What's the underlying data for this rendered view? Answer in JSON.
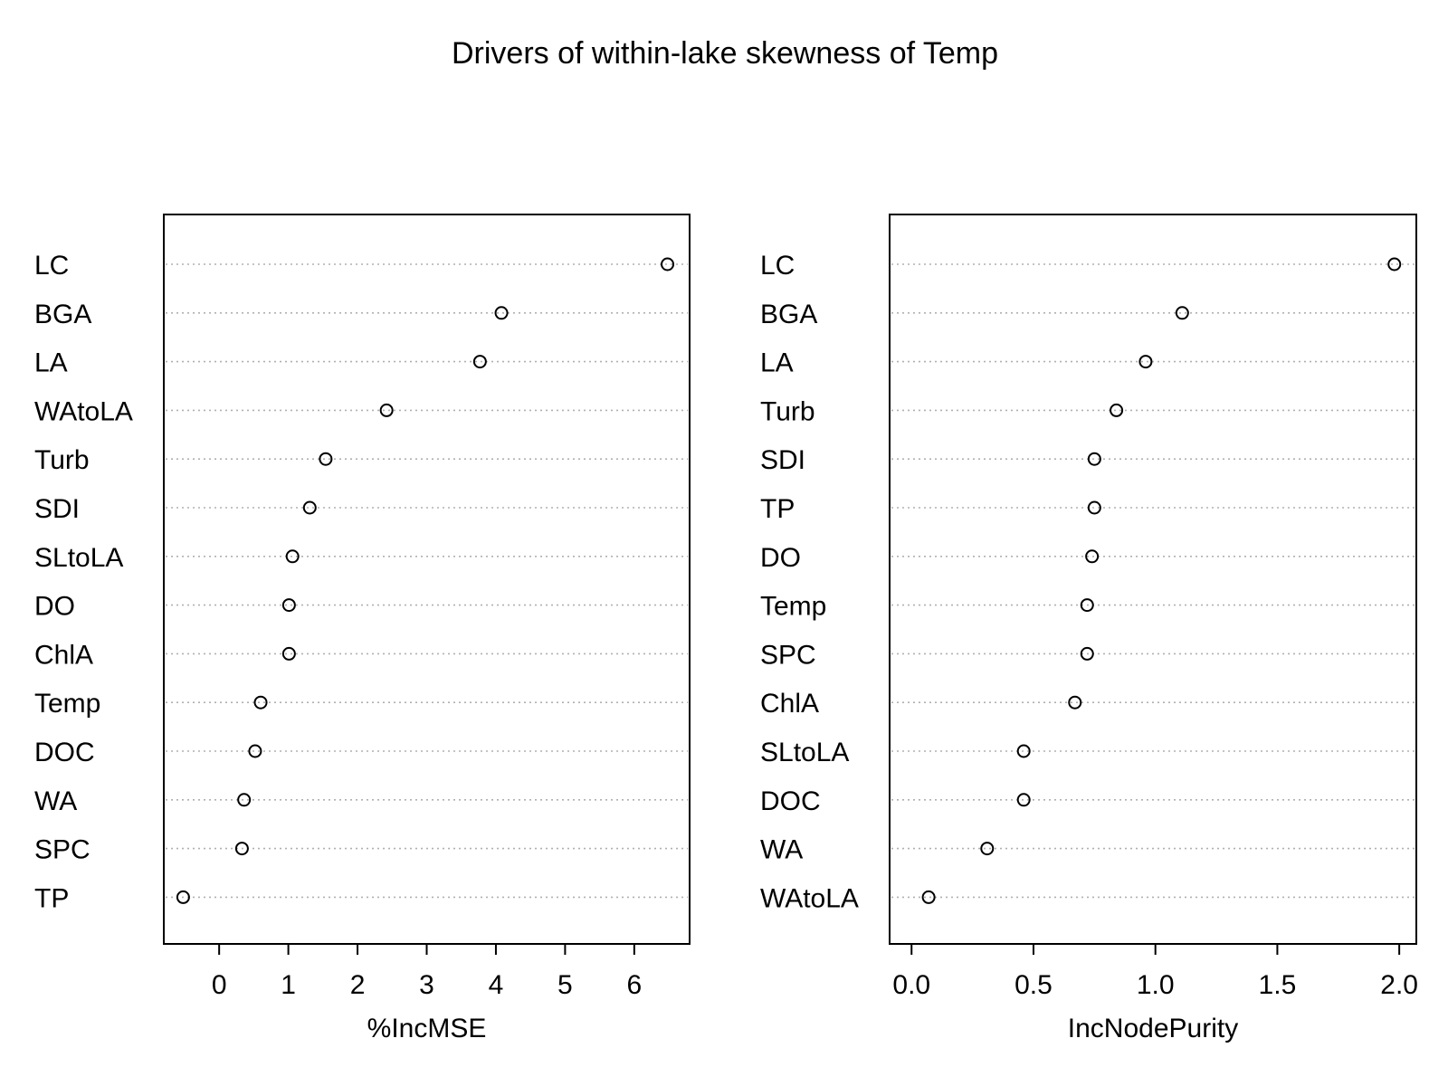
{
  "title": "Drivers of within-lake skewness of Temp",
  "chart_data": [
    {
      "type": "scatter",
      "subtype": "dotchart",
      "xlabel": "%IncMSE",
      "xlim": [
        -0.8,
        6.8
      ],
      "xticks": [
        0,
        1,
        2,
        3,
        4,
        5,
        6
      ],
      "xtick_labels": [
        "0",
        "1",
        "2",
        "3",
        "4",
        "5",
        "6"
      ],
      "grid": "dotted horizontal guides",
      "categories": [
        "LC",
        "BGA",
        "LA",
        "WAtoLA",
        "Turb",
        "SDI",
        "SLtoLA",
        "DO",
        "ChlA",
        "Temp",
        "DOC",
        "WA",
        "SPC",
        "TP"
      ],
      "values": [
        6.48,
        4.08,
        3.77,
        2.42,
        1.54,
        1.31,
        1.06,
        1.01,
        1.01,
        0.6,
        0.52,
        0.36,
        0.33,
        -0.52
      ]
    },
    {
      "type": "scatter",
      "subtype": "dotchart",
      "xlabel": "IncNodePurity",
      "xlim": [
        -0.09,
        2.07
      ],
      "xticks": [
        0.0,
        0.5,
        1.0,
        1.5,
        2.0
      ],
      "xtick_labels": [
        "0.0",
        "0.5",
        "1.0",
        "1.5",
        "2.0"
      ],
      "grid": "dotted horizontal guides",
      "categories": [
        "LC",
        "BGA",
        "LA",
        "Turb",
        "SDI",
        "TP",
        "DO",
        "Temp",
        "SPC",
        "ChlA",
        "SLtoLA",
        "DOC",
        "WA",
        "WAtoLA"
      ],
      "values": [
        1.98,
        1.11,
        0.96,
        0.84,
        0.75,
        0.75,
        0.74,
        0.72,
        0.72,
        0.67,
        0.46,
        0.46,
        0.31,
        0.07
      ]
    }
  ]
}
